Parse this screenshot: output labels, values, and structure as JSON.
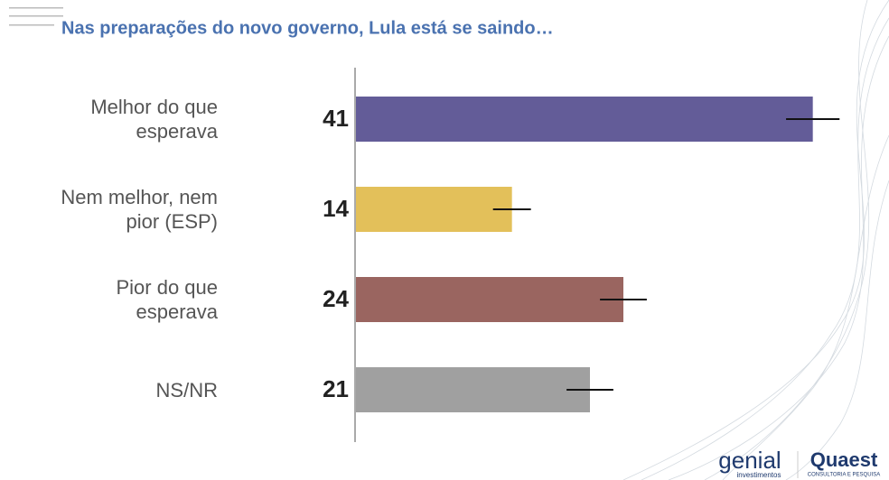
{
  "chart_data": {
    "type": "bar",
    "orientation": "horizontal",
    "title": "Nas preparações do novo governo, Lula está se saindo…",
    "categories": [
      "Melhor do que esperava",
      "Nem melhor, nem pior (ESP)",
      "Pior do que esperava",
      "NS/NR"
    ],
    "series": [
      {
        "values": [
          41,
          14,
          24,
          21
        ],
        "errors": [
          2.4,
          1.7,
          2.1,
          2.1
        ],
        "colors": [
          "#635c98",
          "#e3c05a",
          "#9a6560",
          "#a0a0a0"
        ]
      }
    ],
    "xlim": [
      0,
      45
    ]
  },
  "logos": [
    "genial",
    "investimentos",
    "Quaest",
    "CONSULTORIA E PESQUISA"
  ]
}
